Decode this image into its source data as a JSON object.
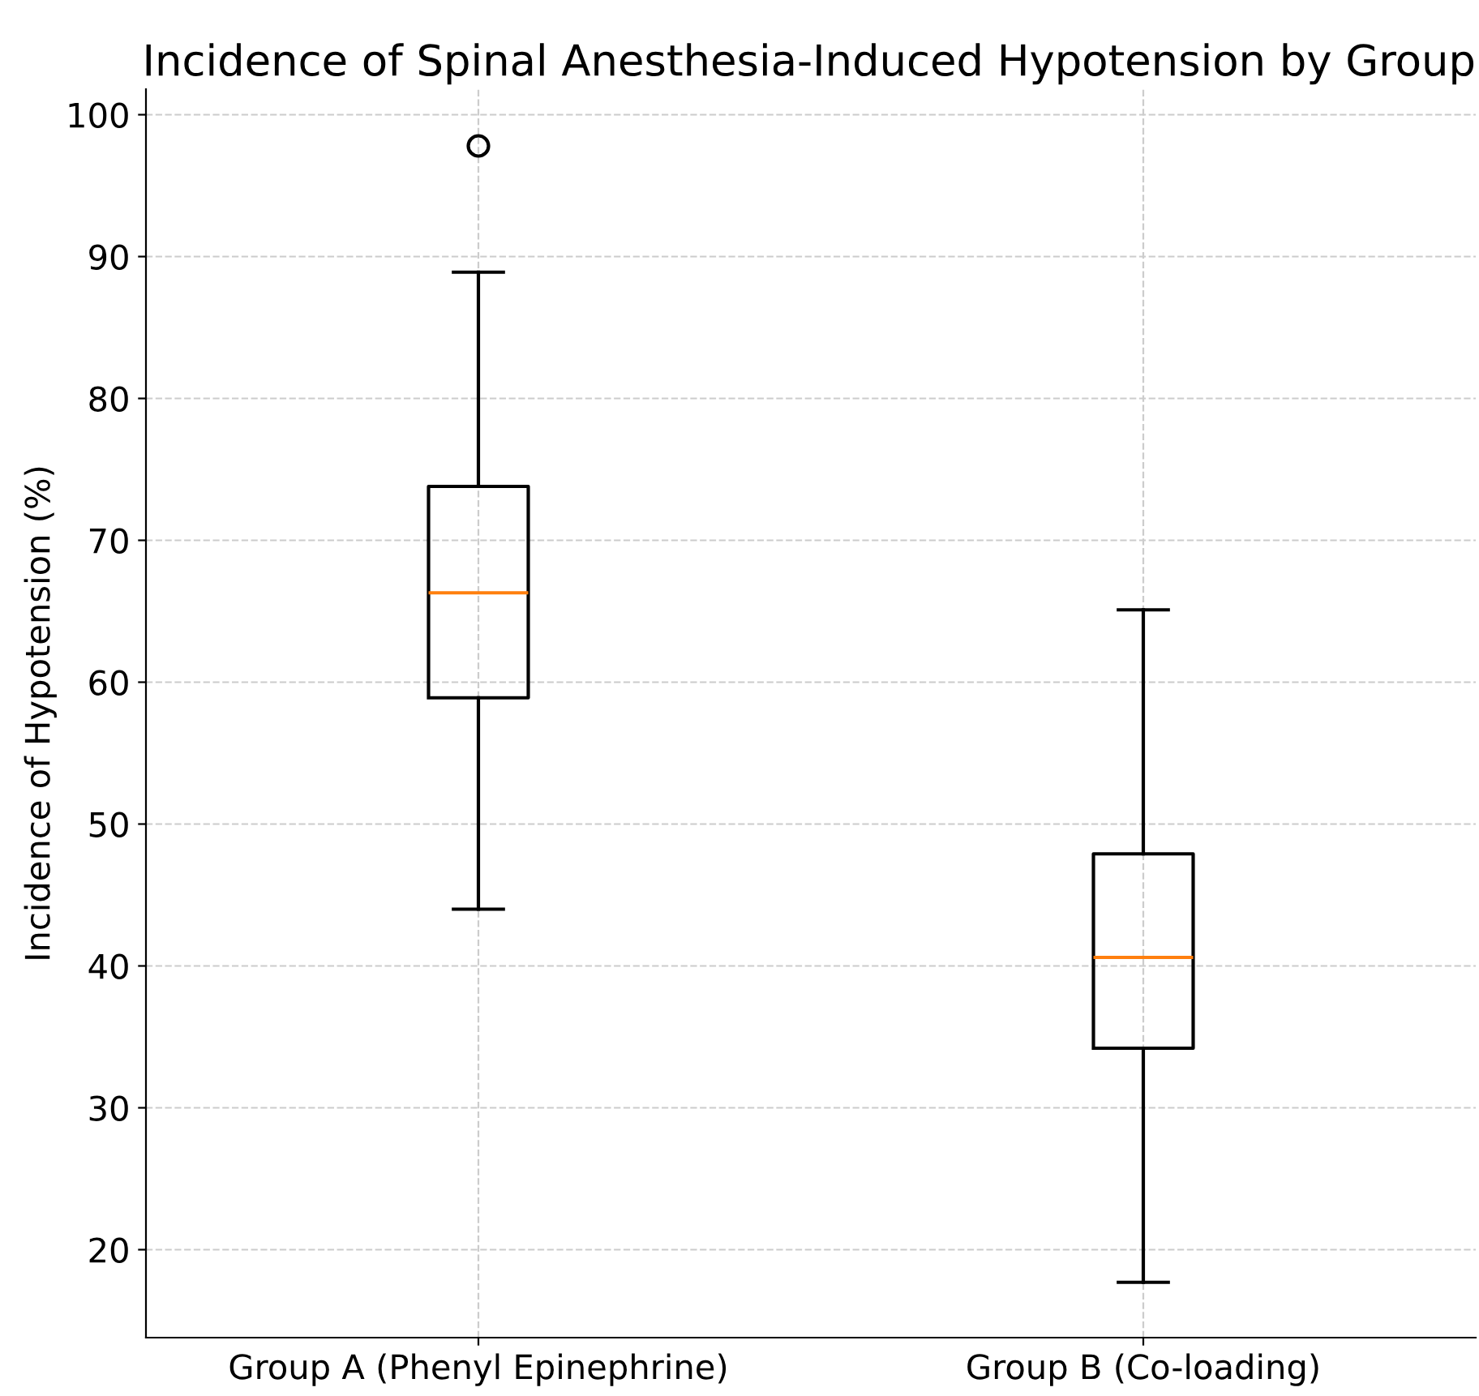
{
  "chart_data": {
    "type": "box",
    "title": "Incidence of Spinal Anesthesia-Induced Hypotension by Group",
    "ylabel": "Incidence of Hypotension (%)",
    "categories": [
      "Group A (Phenyl Epinephrine)",
      "Group B (Co-loading)"
    ],
    "boxes": [
      {
        "low": 44.0,
        "q1": 58.9,
        "median": 66.3,
        "q3": 73.8,
        "high": 88.9,
        "outliers": [
          97.8
        ]
      },
      {
        "low": 17.7,
        "q1": 34.2,
        "median": 40.6,
        "q3": 47.9,
        "high": 65.1
      }
    ],
    "ylim": [
      13.8,
      101.8
    ],
    "yticks": [
      20,
      30,
      40,
      50,
      60,
      70,
      80,
      90,
      100
    ],
    "grid": true
  }
}
